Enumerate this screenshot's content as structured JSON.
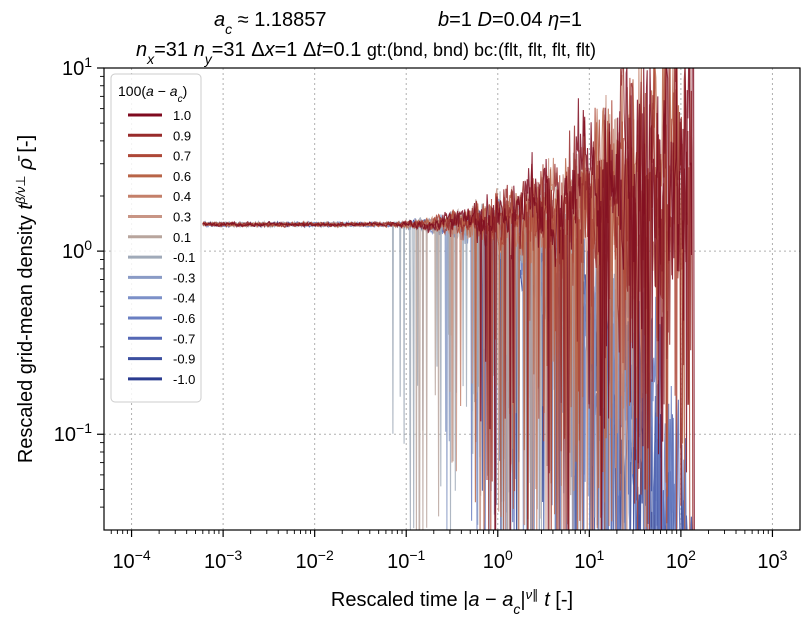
{
  "chart_data": {
    "type": "line",
    "title_line1": {
      "left": "a_c ≈ 1.18857",
      "right": "b=1   D=0.04   η=1"
    },
    "title_line2": "n_x=31  n_y=31   Δx=1   Δt=0.1   gt:(bnd, bnd)  bc:(flt, flt, flt, flt)",
    "xlabel": "Rescaled time |a − a_c|^ν∥ t  [-]",
    "ylabel": "Rescaled grid-mean density  t^(β/ν⊥) ρ̄  [-]",
    "xscale": "log",
    "yscale": "log",
    "xlim": [
      5e-05,
      2000
    ],
    "ylim": [
      0.03,
      10
    ],
    "x_ticks": [
      {
        "value": 0.0001,
        "mantissa": "10",
        "exp": "−4"
      },
      {
        "value": 0.001,
        "mantissa": "10",
        "exp": "−3"
      },
      {
        "value": 0.01,
        "mantissa": "10",
        "exp": "−2"
      },
      {
        "value": 0.1,
        "mantissa": "10",
        "exp": "−1"
      },
      {
        "value": 1,
        "mantissa": "10",
        "exp": "0"
      },
      {
        "value": 10,
        "mantissa": "10",
        "exp": "1"
      },
      {
        "value": 100,
        "mantissa": "10",
        "exp": "2"
      },
      {
        "value": 1000,
        "mantissa": "10",
        "exp": "3"
      }
    ],
    "y_ticks": [
      {
        "value": 0.1,
        "mantissa": "10",
        "exp": "−1"
      },
      {
        "value": 1,
        "mantissa": "10",
        "exp": "0"
      },
      {
        "value": 10,
        "mantissa": "10",
        "exp": "1"
      }
    ],
    "grid": true,
    "legend": {
      "placement": "upper-left",
      "title": "100(a − a_c)"
    },
    "series": [
      {
        "name": "1.0",
        "color": "#7f0a1f",
        "x_start": 0.0006,
        "x_end": 140
      },
      {
        "name": "0.9",
        "color": "#982b2b",
        "x_start": 0.0006,
        "x_end": 135
      },
      {
        "name": "0.7",
        "color": "#ad4737",
        "x_start": 0.0006,
        "x_end": 125
      },
      {
        "name": "0.6",
        "color": "#b86447",
        "x_start": 0.0006,
        "x_end": 110
      },
      {
        "name": "0.4",
        "color": "#c4806a",
        "x_start": 0.0006,
        "x_end": 70
      },
      {
        "name": "0.3",
        "color": "#c89585",
        "x_start": 0.0006,
        "x_end": 40
      },
      {
        "name": "0.1",
        "color": "#b8a59d",
        "x_start": 0.0006,
        "x_end": 8
      },
      {
        "name": "-0.1",
        "color": "#a0aab9",
        "x_start": 0.0006,
        "x_end": 3
      },
      {
        "name": "-0.3",
        "color": "#8a9bc6",
        "x_start": 0.0006,
        "x_end": 25
      },
      {
        "name": "-0.4",
        "color": "#7c90c8",
        "x_start": 0.0006,
        "x_end": 50
      },
      {
        "name": "-0.6",
        "color": "#6a7fc2",
        "x_start": 0.0006,
        "x_end": 90
      },
      {
        "name": "-0.7",
        "color": "#5568b5",
        "x_start": 0.0006,
        "x_end": 120
      },
      {
        "name": "-0.9",
        "color": "#3c4f9f",
        "x_start": 0.0006,
        "x_end": 150
      },
      {
        "name": "-1.0",
        "color": "#2a3b8f",
        "x_start": 0.0006,
        "x_end": 160
      }
    ],
    "plateau_value": 1.4
  }
}
